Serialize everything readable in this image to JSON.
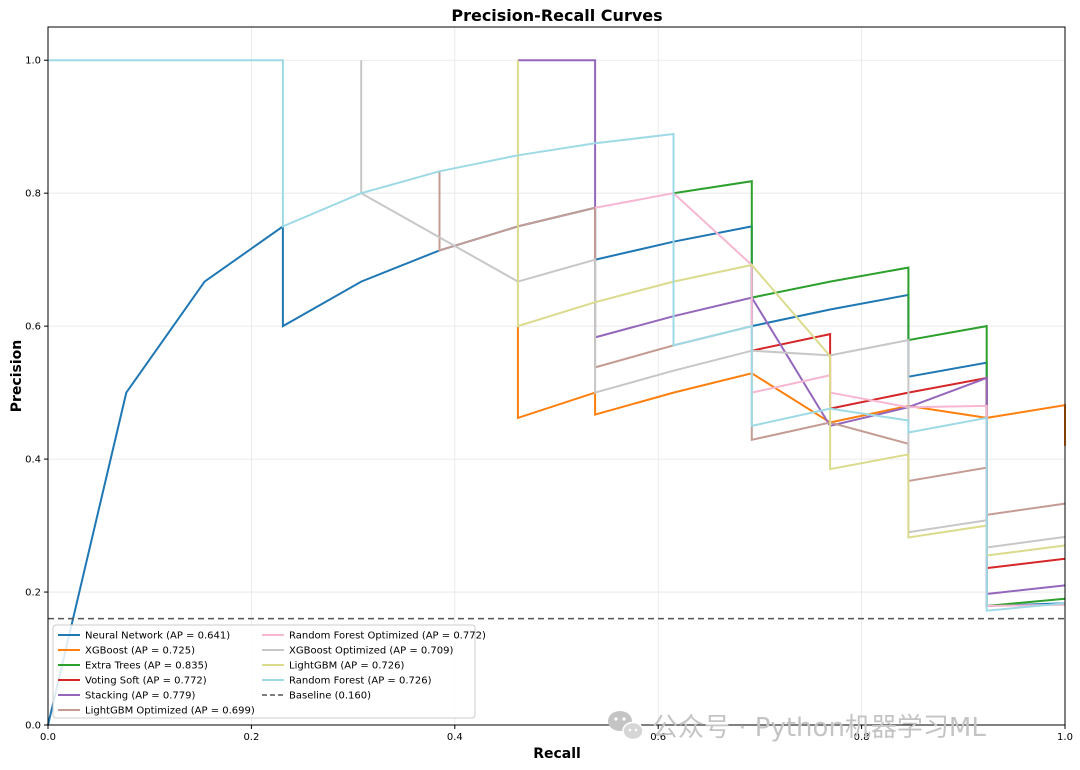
{
  "chart_data": {
    "type": "line",
    "title": "Precision-Recall Curves",
    "xlabel": "Recall",
    "ylabel": "Precision",
    "xlim": [
      0,
      1
    ],
    "ylim": [
      0,
      1.05
    ],
    "xticks": [
      "0.0",
      "0.2",
      "0.4",
      "0.6",
      "0.8",
      "1.0"
    ],
    "yticks": [
      "0.0",
      "0.2",
      "0.4",
      "0.6",
      "0.8",
      "1.0"
    ],
    "grid": true,
    "legend_location": "lower-left",
    "series": [
      {
        "name": "Neural Network (AP = 0.641)",
        "color": "#1f77b4",
        "x": [
          0,
          0.077,
          0.154,
          0.231,
          0.231,
          0.308,
          0.385,
          0.462,
          0.538,
          0.538,
          0.615,
          0.692,
          0.692,
          0.769,
          0.846,
          0.846,
          0.923,
          0.923,
          1.0
        ],
        "y": [
          0,
          0.5,
          0.667,
          0.75,
          0.6,
          0.667,
          0.714,
          0.75,
          0.778,
          0.7,
          0.727,
          0.75,
          0.6,
          0.625,
          0.647,
          0.524,
          0.545,
          0.179,
          0.183
        ]
      },
      {
        "name": "XGBoost (AP = 0.725)",
        "color": "#ff7f0e",
        "x": [
          0.462,
          0.462,
          0.538,
          0.538,
          0.615,
          0.692,
          0.769,
          0.846,
          0.923,
          1.0,
          1.0
        ],
        "y": [
          0.6,
          0.462,
          0.5,
          0.467,
          0.5,
          0.529,
          0.455,
          0.48,
          0.462,
          0.481,
          0.42
        ]
      },
      {
        "name": "Extra Trees (AP = 0.835)",
        "color": "#2ca02c",
        "x": [
          0.615,
          0.692,
          0.692,
          0.769,
          0.846,
          0.846,
          0.923,
          0.923,
          1.0
        ],
        "y": [
          0.8,
          0.818,
          0.643,
          0.667,
          0.688,
          0.579,
          0.6,
          0.179,
          0.19
        ]
      },
      {
        "name": "Voting Soft (AP = 0.772)",
        "color": "#d62728",
        "x": [
          0.692,
          0.769,
          0.769,
          0.846,
          0.923,
          0.923,
          1.0
        ],
        "y": [
          0.563,
          0.588,
          0.476,
          0.5,
          0.522,
          0.236,
          0.25
        ]
      },
      {
        "name": "Stacking (AP = 0.779)",
        "color": "#9467bd",
        "x": [
          0.462,
          0.538,
          0.538,
          0.615,
          0.692,
          0.769,
          0.846,
          0.923,
          0.923,
          1.0
        ],
        "y": [
          1.0,
          1.0,
          0.583,
          0.615,
          0.643,
          0.45,
          0.478,
          0.522,
          0.197,
          0.21
        ]
      },
      {
        "name": "LightGBM Optimized (AP = 0.699)",
        "color": "#c49c94",
        "x": [
          0.385,
          0.385,
          0.462,
          0.538,
          0.538,
          0.615,
          0.692,
          0.692,
          0.769,
          0.846,
          0.846,
          0.923,
          0.923,
          1.0
        ],
        "y": [
          0.833,
          0.714,
          0.75,
          0.778,
          0.538,
          0.571,
          0.6,
          0.429,
          0.455,
          0.423,
          0.367,
          0.387,
          0.316,
          0.333
        ]
      },
      {
        "name": "Random Forest Optimized (AP = 0.772)",
        "color": "#f7b6d2",
        "x": [
          0.538,
          0.615,
          0.692,
          0.692,
          0.769,
          0.769,
          0.846,
          0.923,
          0.923,
          1.0
        ],
        "y": [
          0.778,
          0.8,
          0.692,
          0.5,
          0.526,
          0.5,
          0.478,
          0.48,
          0.179,
          0.181
        ]
      },
      {
        "name": "XGBoost Optimized (AP = 0.709)",
        "color": "#c7c7c7",
        "x": [
          0.308,
          0.308,
          0.462,
          0.538,
          0.538,
          0.615,
          0.692,
          0.769,
          0.846,
          0.846,
          0.923,
          0.923,
          1.0
        ],
        "y": [
          1.0,
          0.8,
          0.667,
          0.7,
          0.5,
          0.533,
          0.563,
          0.556,
          0.579,
          0.29,
          0.308,
          0.267,
          0.283
        ]
      },
      {
        "name": "LightGBM (AP = 0.726)",
        "color": "#dbdb8d",
        "x": [
          0.462,
          0.462,
          0.538,
          0.615,
          0.692,
          0.769,
          0.769,
          0.846,
          0.846,
          0.923,
          0.923,
          1.0
        ],
        "y": [
          1.0,
          0.6,
          0.636,
          0.667,
          0.692,
          0.555,
          0.385,
          0.407,
          0.282,
          0.3,
          0.255,
          0.27
        ]
      },
      {
        "name": "Random Forest (AP = 0.726)",
        "color": "#9edae5",
        "x": [
          0.0,
          0.231,
          0.231,
          0.308,
          0.385,
          0.462,
          0.538,
          0.615,
          0.615,
          0.692,
          0.692,
          0.769,
          0.846,
          0.846,
          0.923,
          0.923,
          1.0
        ],
        "y": [
          1.0,
          1.0,
          0.75,
          0.8,
          0.833,
          0.857,
          0.875,
          0.889,
          0.571,
          0.6,
          0.45,
          0.476,
          0.458,
          0.44,
          0.462,
          0.172,
          0.183
        ]
      }
    ],
    "baseline": {
      "name": "Baseline (0.160)",
      "value": 0.16,
      "color": "#555555"
    }
  },
  "watermark": {
    "text": "公众号 · Python机器学习ML",
    "icon": "wechat-icon"
  }
}
